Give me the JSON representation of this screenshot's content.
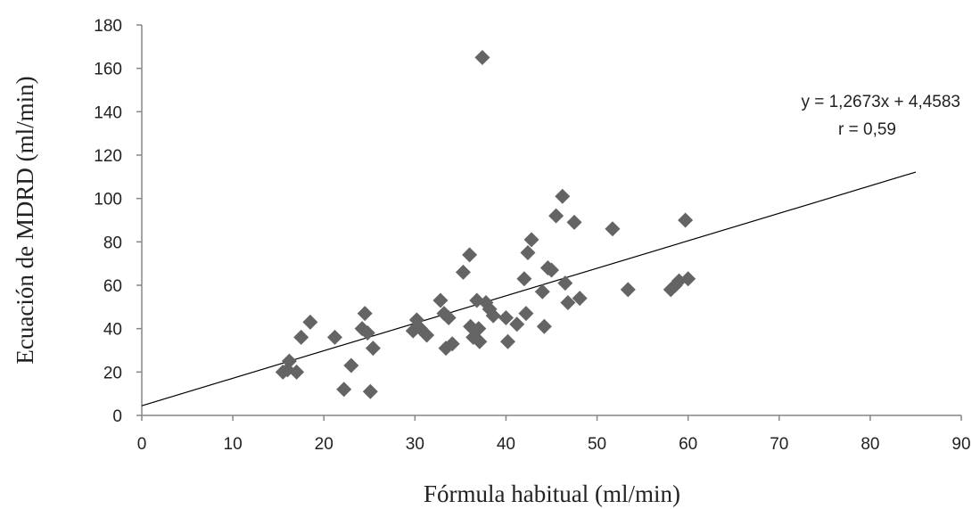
{
  "chart_data": {
    "type": "scatter",
    "title": "",
    "xlabel": "Fórmula habitual (ml/min)",
    "ylabel": "Ecuación de MDRD (ml/min)",
    "xlim": [
      0,
      90
    ],
    "ylim": [
      0,
      180
    ],
    "xticks": [
      0,
      10,
      20,
      30,
      40,
      50,
      60,
      70,
      80,
      90
    ],
    "yticks": [
      0,
      20,
      40,
      60,
      80,
      100,
      120,
      140,
      160,
      180
    ],
    "grid": false,
    "marker_color": "#646464",
    "line_color": "#000000",
    "trendline": {
      "slope": 1.2673,
      "intercept": 4.4583,
      "x_range": [
        0,
        85
      ],
      "equation": "y = 1,2673x + 4,4583",
      "r_label": "r = 0,59"
    },
    "points": [
      {
        "x": 15.5,
        "y": 20
      },
      {
        "x": 16,
        "y": 21
      },
      {
        "x": 16.2,
        "y": 25
      },
      {
        "x": 17,
        "y": 20
      },
      {
        "x": 17.5,
        "y": 36
      },
      {
        "x": 18.5,
        "y": 43
      },
      {
        "x": 21.2,
        "y": 36
      },
      {
        "x": 22.2,
        "y": 12
      },
      {
        "x": 23,
        "y": 23
      },
      {
        "x": 24.2,
        "y": 40
      },
      {
        "x": 24.5,
        "y": 47
      },
      {
        "x": 24.8,
        "y": 38
      },
      {
        "x": 25.1,
        "y": 11
      },
      {
        "x": 25.4,
        "y": 31
      },
      {
        "x": 29.8,
        "y": 39
      },
      {
        "x": 30.2,
        "y": 44
      },
      {
        "x": 30.6,
        "y": 40
      },
      {
        "x": 31.3,
        "y": 37
      },
      {
        "x": 32.8,
        "y": 53
      },
      {
        "x": 33.2,
        "y": 47
      },
      {
        "x": 33.4,
        "y": 31
      },
      {
        "x": 33.7,
        "y": 45
      },
      {
        "x": 34.1,
        "y": 33
      },
      {
        "x": 35.3,
        "y": 66
      },
      {
        "x": 36,
        "y": 74
      },
      {
        "x": 36.1,
        "y": 41
      },
      {
        "x": 36.4,
        "y": 36
      },
      {
        "x": 36.8,
        "y": 53
      },
      {
        "x": 37,
        "y": 40
      },
      {
        "x": 37.1,
        "y": 34
      },
      {
        "x": 37.4,
        "y": 165
      },
      {
        "x": 37.8,
        "y": 52
      },
      {
        "x": 38.2,
        "y": 49
      },
      {
        "x": 38.6,
        "y": 46
      },
      {
        "x": 40,
        "y": 45
      },
      {
        "x": 40.2,
        "y": 34
      },
      {
        "x": 41.2,
        "y": 42
      },
      {
        "x": 42,
        "y": 63
      },
      {
        "x": 42.2,
        "y": 47
      },
      {
        "x": 42.4,
        "y": 75
      },
      {
        "x": 42.8,
        "y": 81
      },
      {
        "x": 44,
        "y": 57
      },
      {
        "x": 44.2,
        "y": 41
      },
      {
        "x": 44.6,
        "y": 68
      },
      {
        "x": 45,
        "y": 67
      },
      {
        "x": 45.5,
        "y": 92
      },
      {
        "x": 46.2,
        "y": 101
      },
      {
        "x": 46.5,
        "y": 61
      },
      {
        "x": 46.8,
        "y": 52
      },
      {
        "x": 47.5,
        "y": 89
      },
      {
        "x": 48.1,
        "y": 54
      },
      {
        "x": 51.7,
        "y": 86
      },
      {
        "x": 53.4,
        "y": 58
      },
      {
        "x": 58.1,
        "y": 58
      },
      {
        "x": 58.6,
        "y": 60
      },
      {
        "x": 59,
        "y": 62
      },
      {
        "x": 59.7,
        "y": 90
      },
      {
        "x": 60,
        "y": 63
      }
    ]
  }
}
